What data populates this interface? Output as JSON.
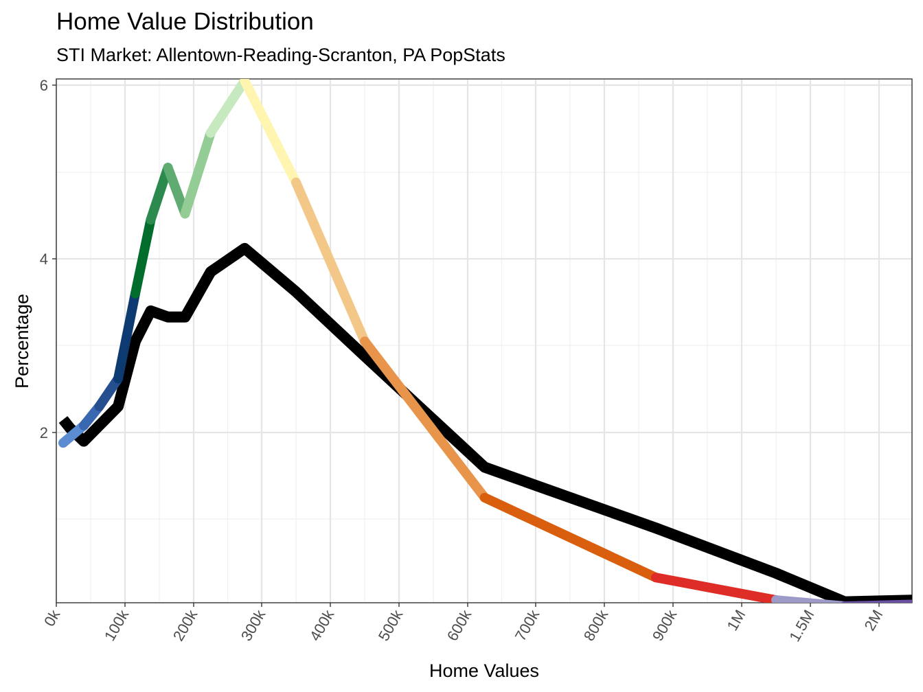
{
  "chart_data": {
    "type": "line",
    "title": "Home Value Distribution",
    "subtitle": "STI Market: Allentown-Reading-Scranton, PA PopStats",
    "xlabel": "Home Values",
    "ylabel": "Percentage",
    "x_tick_labels": [
      "0k",
      "100k",
      "200k",
      "300k",
      "400k",
      "500k",
      "600k",
      "700k",
      "800k",
      "900k",
      "1M",
      "1.5M",
      "2M"
    ],
    "y_ticks": [
      2,
      4,
      6
    ],
    "ylim": [
      0,
      6
    ],
    "grid": true,
    "series": [
      {
        "color": "#000000",
        "points": [
          {
            "x": "10k",
            "y": 2.15
          },
          {
            "x": "20k",
            "y": 2.05
          },
          {
            "x": "40k",
            "y": 1.9
          },
          {
            "x": "90k",
            "y": 2.3
          },
          {
            "x": "115k",
            "y": 3.05
          },
          {
            "x": "137.5k",
            "y": 3.4
          },
          {
            "x": "162.5k",
            "y": 3.33
          },
          {
            "x": "187.5k",
            "y": 3.33
          },
          {
            "x": "225k",
            "y": 3.85
          },
          {
            "x": "275k",
            "y": 4.12
          },
          {
            "x": "350k",
            "y": 3.62
          },
          {
            "x": "450k",
            "y": 2.88
          },
          {
            "x": "625k",
            "y": 1.6
          },
          {
            "x": "875k",
            "y": 0.9
          },
          {
            "x": "1.25M",
            "y": 0.38
          },
          {
            "x": "1.75M",
            "y": 0.05
          },
          {
            "x": "2.25M",
            "y": 0.07
          }
        ]
      },
      {
        "color_segments": [
          {
            "from": {
              "x": "10k",
              "y": 1.88
            },
            "to": {
              "x": "40k",
              "y": 2.08
            },
            "color": "#5b8bd0"
          },
          {
            "from": {
              "x": "40k",
              "y": 2.08
            },
            "to": {
              "x": "62.5k",
              "y": 2.3
            },
            "color": "#3a68b0"
          },
          {
            "from": {
              "x": "62.5k",
              "y": 2.3
            },
            "to": {
              "x": "90k",
              "y": 2.62
            },
            "color": "#264f8f"
          },
          {
            "from": {
              "x": "90k",
              "y": 2.62
            },
            "to": {
              "x": "115k",
              "y": 3.6
            },
            "color": "#0e3a72"
          },
          {
            "from": {
              "x": "115k",
              "y": 3.6
            },
            "to": {
              "x": "137.5k",
              "y": 4.45
            },
            "color": "#006d2c"
          },
          {
            "from": {
              "x": "137.5k",
              "y": 4.45
            },
            "to": {
              "x": "162.5k",
              "y": 5.05
            },
            "color": "#2d8a4e"
          },
          {
            "from": {
              "x": "162.5k",
              "y": 5.05
            },
            "to": {
              "x": "187.5k",
              "y": 4.52
            },
            "color": "#5fab72"
          },
          {
            "from": {
              "x": "187.5k",
              "y": 4.52
            },
            "to": {
              "x": "225k",
              "y": 5.45
            },
            "color": "#94cc96"
          },
          {
            "from": {
              "x": "225k",
              "y": 5.45
            },
            "to": {
              "x": "275k",
              "y": 6.05
            },
            "color": "#c7e9c0"
          },
          {
            "from": {
              "x": "275k",
              "y": 6.05
            },
            "to": {
              "x": "350k",
              "y": 4.88
            },
            "color": "#fff5b0"
          },
          {
            "from": {
              "x": "350k",
              "y": 4.88
            },
            "to": {
              "x": "450k",
              "y": 3.05
            },
            "color": "#f3c787"
          },
          {
            "from": {
              "x": "450k",
              "y": 3.05
            },
            "to": {
              "x": "625k",
              "y": 1.25
            },
            "color": "#e8944a"
          },
          {
            "from": {
              "x": "625k",
              "y": 1.25
            },
            "to": {
              "x": "875k",
              "y": 0.33
            },
            "color": "#d95f0e"
          },
          {
            "from": {
              "x": "875k",
              "y": 0.33
            },
            "to": {
              "x": "1.25M",
              "y": 0.07
            },
            "color": "#de2d26"
          },
          {
            "from": {
              "x": "1.25M",
              "y": 0.07
            },
            "to": {
              "x": "1.75M",
              "y": 0.0
            },
            "color": "#9e9ac8"
          },
          {
            "from": {
              "x": "1.75M",
              "y": 0.0
            },
            "to": {
              "x": "2.25M",
              "y": 0.02
            },
            "color": "#6a51a3"
          }
        ]
      }
    ]
  }
}
